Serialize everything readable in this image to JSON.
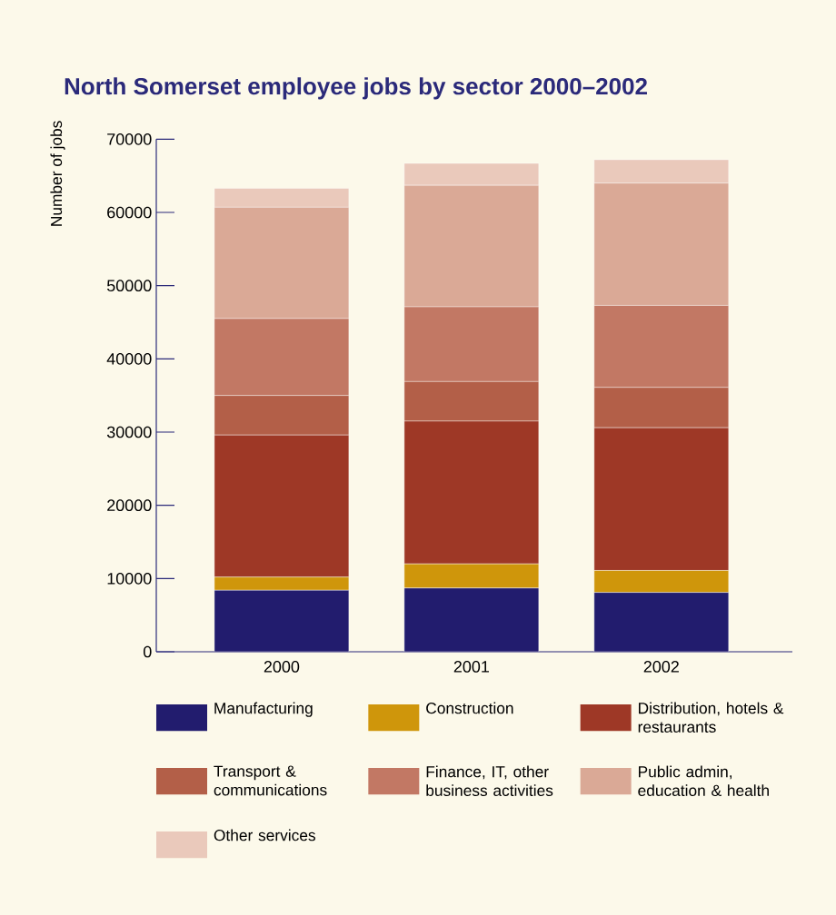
{
  "chart_data": {
    "type": "bar",
    "title": "North Somerset employee jobs by sector 2000–2002",
    "ylabel": "Number of jobs",
    "categories": [
      "2000",
      "2001",
      "2002"
    ],
    "stacked": true,
    "ylim": [
      0,
      70000
    ],
    "yticks": [
      0,
      10000,
      20000,
      30000,
      40000,
      50000,
      60000,
      70000
    ],
    "legend": "bottom",
    "series": [
      {
        "name": "Manufacturing",
        "color": "#221c6e",
        "values": [
          8400,
          8700,
          8100
        ]
      },
      {
        "name": "Construction",
        "color": "#cf960b",
        "values": [
          1800,
          3300,
          3000
        ]
      },
      {
        "name": "Distribution, hotels & restaurants",
        "color": "#9e3826",
        "values": [
          19400,
          19500,
          19500
        ]
      },
      {
        "name": "Transport & communications",
        "color": "#b35f48",
        "values": [
          5400,
          5400,
          5500
        ]
      },
      {
        "name": "Finance, IT, other business activities",
        "color": "#c27864",
        "values": [
          10500,
          10200,
          11200
        ]
      },
      {
        "name": "Public admin, education & health",
        "color": "#daa996",
        "values": [
          15200,
          16600,
          16700
        ]
      },
      {
        "name": "Other services",
        "color": "#eac9bb",
        "values": [
          2600,
          3000,
          3200
        ]
      }
    ]
  }
}
